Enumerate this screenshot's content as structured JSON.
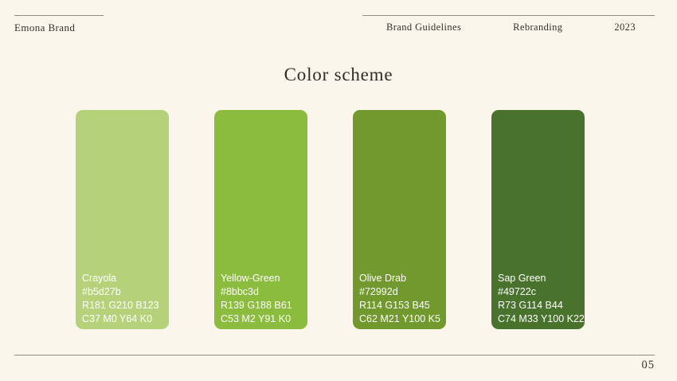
{
  "page": {
    "background": "#fbf6ec",
    "rule_color": "#8f8b80",
    "text_color": "#35332c"
  },
  "header": {
    "brand": "Emona Brand",
    "items": [
      {
        "label": "Brand Guidelines"
      },
      {
        "label": "Rebranding"
      },
      {
        "label": "2023"
      }
    ]
  },
  "title": "Color scheme",
  "swatches": [
    {
      "name": "Crayola",
      "hex": "#b5d27b",
      "rgb": "R181 G210 B123",
      "cmyk": "C37 M0 Y64 K0"
    },
    {
      "name": "Yellow-Green",
      "hex": "#8bbc3d",
      "rgb": "R139 G188 B61",
      "cmyk": "C53 M2 Y91 K0"
    },
    {
      "name": "Olive Drab",
      "hex": "#72992d",
      "rgb": "R114 G153 B45",
      "cmyk": "C62 M21 Y100 K5"
    },
    {
      "name": "Sap Green",
      "hex": "#49722c",
      "rgb": "R73 G114 B44",
      "cmyk": "C74 M33 Y100 K22"
    }
  ],
  "footer": {
    "page_number": "05"
  }
}
